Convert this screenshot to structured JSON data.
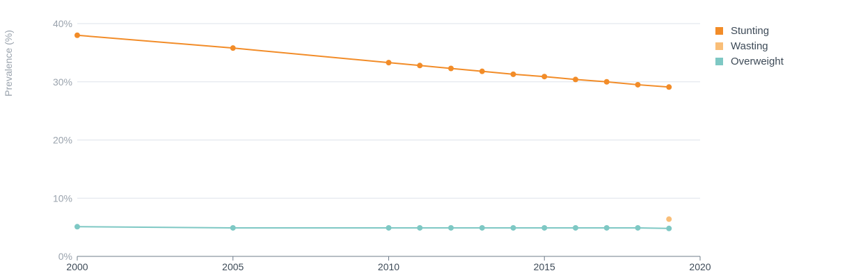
{
  "chart_data": {
    "type": "line",
    "ylabel": "Prevalence (%)",
    "xlabel": "",
    "xlim": [
      2000,
      2020
    ],
    "ylim": [
      0,
      40
    ],
    "x_ticks": [
      "2000",
      "2005",
      "2010",
      "2015",
      "2020"
    ],
    "y_ticks": [
      "0%",
      "10%",
      "20%",
      "30%",
      "40%"
    ],
    "grid": "horizontal",
    "legend_position": "top-right",
    "series": [
      {
        "name": "Stunting",
        "color": "#f28c28",
        "x": [
          2000,
          2005,
          2010,
          2011,
          2012,
          2013,
          2014,
          2015,
          2016,
          2017,
          2018,
          2019
        ],
        "values": [
          38.0,
          35.8,
          33.3,
          32.8,
          32.3,
          31.8,
          31.3,
          30.9,
          30.4,
          30.0,
          29.5,
          29.1
        ]
      },
      {
        "name": "Wasting",
        "color": "#f9be78",
        "x": [
          2019
        ],
        "values": [
          6.4
        ]
      },
      {
        "name": "Overweight",
        "color": "#7ec8c4",
        "x": [
          2000,
          2005,
          2010,
          2011,
          2012,
          2013,
          2014,
          2015,
          2016,
          2017,
          2018,
          2019
        ],
        "values": [
          5.1,
          4.9,
          4.9,
          4.9,
          4.9,
          4.9,
          4.9,
          4.9,
          4.9,
          4.9,
          4.9,
          4.8
        ]
      }
    ]
  }
}
